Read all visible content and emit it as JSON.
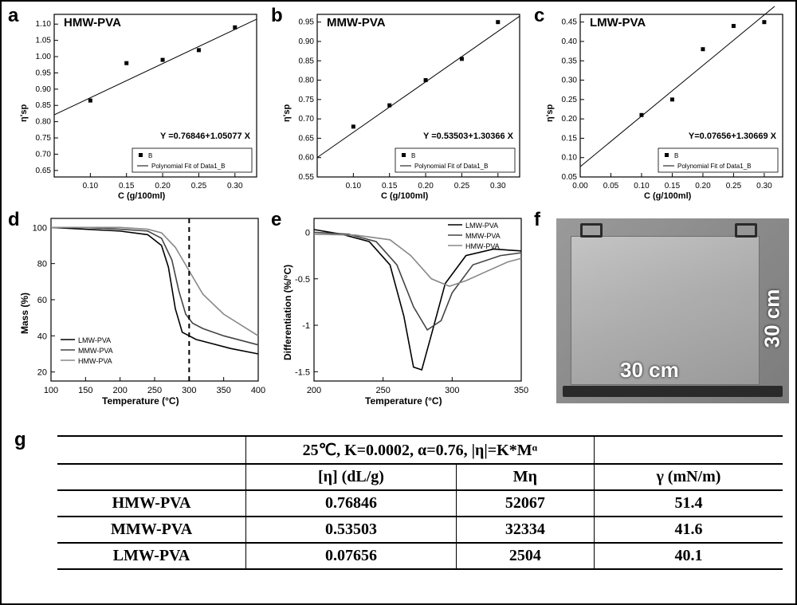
{
  "figure": {
    "frame_color": "#000000",
    "background": "#ffffff"
  },
  "panels": {
    "a": {
      "letter": "a",
      "letter_fontsize": 24,
      "title": "HMW-PVA",
      "title_fontsize": 15,
      "xlabel": "C (g/100ml)",
      "ylabel": "η'sp",
      "label_fontsize": 11,
      "tick_fontsize": 10,
      "xlim": [
        0.05,
        0.33
      ],
      "ylim": [
        0.63,
        1.13
      ],
      "xticks": [
        0.1,
        0.15,
        0.2,
        0.25,
        0.3
      ],
      "yticks": [
        0.65,
        0.7,
        0.75,
        0.8,
        0.85,
        0.9,
        0.95,
        1.0,
        1.05,
        1.1
      ],
      "type": "scatter_with_linear_fit",
      "points_x": [
        0.1,
        0.15,
        0.2,
        0.25,
        0.3
      ],
      "points_y": [
        0.865,
        0.98,
        0.99,
        1.02,
        1.09
      ],
      "line_slope": 1.05077,
      "line_intercept": 0.76846,
      "equation": "Y =0.76846+1.05077 X",
      "equation_fontsize": 11,
      "legend_marker_label": "B",
      "legend_line_label": "Polynomial Fit of Data1_B",
      "legend_fontsize": 8,
      "marker": "square",
      "marker_size": 5,
      "marker_color": "#000000",
      "line_color": "#000000",
      "line_width": 1,
      "axis_color": "#000000",
      "tick_color": "#000000",
      "background": "#ffffff"
    },
    "b": {
      "letter": "b",
      "letter_fontsize": 24,
      "title": "MMW-PVA",
      "title_fontsize": 15,
      "xlabel": "C (g/100ml)",
      "ylabel": "η'sp",
      "label_fontsize": 11,
      "tick_fontsize": 10,
      "xlim": [
        0.05,
        0.33
      ],
      "ylim": [
        0.55,
        0.97
      ],
      "xticks": [
        0.1,
        0.15,
        0.2,
        0.25,
        0.3
      ],
      "yticks": [
        0.55,
        0.6,
        0.65,
        0.7,
        0.75,
        0.8,
        0.85,
        0.9,
        0.95
      ],
      "type": "scatter_with_linear_fit",
      "points_x": [
        0.1,
        0.15,
        0.2,
        0.25,
        0.3
      ],
      "points_y": [
        0.68,
        0.735,
        0.8,
        0.855,
        0.95
      ],
      "line_slope": 1.30366,
      "line_intercept": 0.53503,
      "equation": "Y =0.53503+1.30366 X",
      "equation_fontsize": 11,
      "legend_marker_label": "B",
      "legend_line_label": "Polynomial Fit of Data1_B",
      "legend_fontsize": 8,
      "marker": "square",
      "marker_size": 5,
      "marker_color": "#000000",
      "line_color": "#000000",
      "line_width": 1,
      "axis_color": "#000000",
      "tick_color": "#000000",
      "background": "#ffffff"
    },
    "c": {
      "letter": "c",
      "letter_fontsize": 24,
      "title": "LMW-PVA",
      "title_fontsize": 15,
      "xlabel": "C (g/100ml)",
      "ylabel": "η'sp",
      "label_fontsize": 11,
      "tick_fontsize": 10,
      "xlim": [
        0.0,
        0.33
      ],
      "ylim": [
        0.05,
        0.47
      ],
      "xticks": [
        0.0,
        0.05,
        0.1,
        0.15,
        0.2,
        0.25,
        0.3
      ],
      "yticks": [
        0.05,
        0.1,
        0.15,
        0.2,
        0.25,
        0.3,
        0.35,
        0.4,
        0.45
      ],
      "type": "scatter_with_linear_fit",
      "points_x": [
        0.1,
        0.15,
        0.2,
        0.25,
        0.3
      ],
      "points_y": [
        0.21,
        0.25,
        0.38,
        0.44,
        0.45
      ],
      "line_slope": 1.30669,
      "line_intercept": 0.07656,
      "equation": "Y=0.07656+1.30669 X",
      "equation_fontsize": 11,
      "legend_marker_label": "B",
      "legend_line_label": "Polynomial Fit of Data1_B",
      "legend_fontsize": 8,
      "marker": "square",
      "marker_size": 5,
      "marker_color": "#000000",
      "line_color": "#000000",
      "line_width": 1,
      "axis_color": "#000000",
      "tick_color": "#000000",
      "background": "#ffffff"
    },
    "d": {
      "letter": "d",
      "letter_fontsize": 24,
      "xlabel": "Temperature (°C)",
      "ylabel": "Mass (%)",
      "label_fontsize": 12,
      "tick_fontsize": 11,
      "xlim": [
        100,
        400
      ],
      "ylim": [
        15,
        105
      ],
      "xticks": [
        100,
        150,
        200,
        250,
        300,
        350,
        400
      ],
      "yticks": [
        20,
        40,
        60,
        80,
        100
      ],
      "type": "line_multi",
      "series": [
        {
          "name": "LMW-PVA",
          "color": "#000000",
          "dash": "none",
          "width": 1.6,
          "x": [
            100,
            150,
            200,
            240,
            260,
            270,
            280,
            290,
            300,
            310,
            330,
            360,
            400
          ],
          "y": [
            100,
            99,
            98,
            96,
            90,
            78,
            55,
            42,
            40,
            38,
            36,
            33,
            30
          ]
        },
        {
          "name": "MMW-PVA",
          "color": "#444444",
          "dash": "none",
          "width": 1.6,
          "x": [
            100,
            150,
            200,
            240,
            260,
            275,
            285,
            295,
            305,
            320,
            350,
            400
          ],
          "y": [
            100,
            100,
            99,
            98,
            94,
            82,
            65,
            52,
            47,
            44,
            40,
            35
          ]
        },
        {
          "name": "HMW-PVA",
          "color": "#888888",
          "dash": "none",
          "width": 1.6,
          "x": [
            100,
            150,
            200,
            240,
            260,
            280,
            300,
            320,
            350,
            400
          ],
          "y": [
            100,
            100,
            100,
            99,
            97,
            89,
            76,
            63,
            52,
            40
          ]
        }
      ],
      "vline_x": 300,
      "vline_dash": "6,5",
      "vline_color": "#000000",
      "vline_width": 2,
      "legend_fontsize": 9,
      "axis_color": "#000000"
    },
    "e": {
      "letter": "e",
      "letter_fontsize": 24,
      "xlabel": "Temperature (°C)",
      "ylabel": "Differentiation (%/°C)",
      "label_fontsize": 12,
      "tick_fontsize": 11,
      "xlim": [
        200,
        350
      ],
      "ylim": [
        -1.6,
        0.15
      ],
      "xticks": [
        200,
        250,
        300,
        350
      ],
      "yticks": [
        -1.5,
        -1.0,
        -0.5,
        0.0
      ],
      "type": "line_multi",
      "series": [
        {
          "name": "LMW-PVA",
          "color": "#000000",
          "dash": "none",
          "width": 1.6,
          "x": [
            200,
            220,
            240,
            255,
            265,
            272,
            278,
            285,
            295,
            310,
            330,
            350
          ],
          "y": [
            0.03,
            -0.02,
            -0.1,
            -0.35,
            -0.9,
            -1.45,
            -1.48,
            -1.1,
            -0.55,
            -0.25,
            -0.18,
            -0.2
          ]
        },
        {
          "name": "MMW-PVA",
          "color": "#444444",
          "dash": "none",
          "width": 1.6,
          "x": [
            200,
            225,
            245,
            260,
            272,
            282,
            292,
            300,
            315,
            335,
            350
          ],
          "y": [
            0.0,
            -0.02,
            -0.1,
            -0.35,
            -0.8,
            -1.05,
            -0.95,
            -0.65,
            -0.35,
            -0.25,
            -0.22
          ]
        },
        {
          "name": "HMW-PVA",
          "color": "#888888",
          "dash": "none",
          "width": 1.6,
          "x": [
            200,
            230,
            255,
            270,
            285,
            298,
            310,
            325,
            340,
            350
          ],
          "y": [
            -0.02,
            -0.03,
            -0.08,
            -0.25,
            -0.5,
            -0.58,
            -0.52,
            -0.42,
            -0.32,
            -0.28
          ]
        }
      ],
      "legend_fontsize": 9,
      "legend_pos": "top-right",
      "axis_color": "#000000"
    },
    "f": {
      "letter": "f",
      "letter_fontsize": 24,
      "photo_bg": "#8b8b8b",
      "dim_horizontal": "30 cm",
      "dim_vertical": "30 cm",
      "dim_fontsize": 26,
      "dim_color": "#ffffff"
    },
    "g": {
      "letter": "g",
      "letter_fontsize": 24,
      "header_formula": "25℃, K=0.0002, α=0.76, |η|=K*Mᵅ",
      "columns": [
        "[η] (dL/g)",
        "Mη",
        "γ (mN/m)"
      ],
      "row_labels": [
        "HMW-PVA",
        "MMW-PVA",
        "LMW-PVA"
      ],
      "rows": [
        [
          "0.76846",
          "52067",
          "51.4"
        ],
        [
          "0.53503",
          "32334",
          "41.6"
        ],
        [
          "0.07656",
          "2504",
          "40.1"
        ]
      ],
      "font_family": "Times New Roman",
      "font_size": 20,
      "header_font_size": 20,
      "border_color": "#000000",
      "col_widths_pct": [
        26,
        24,
        24,
        26
      ]
    }
  }
}
